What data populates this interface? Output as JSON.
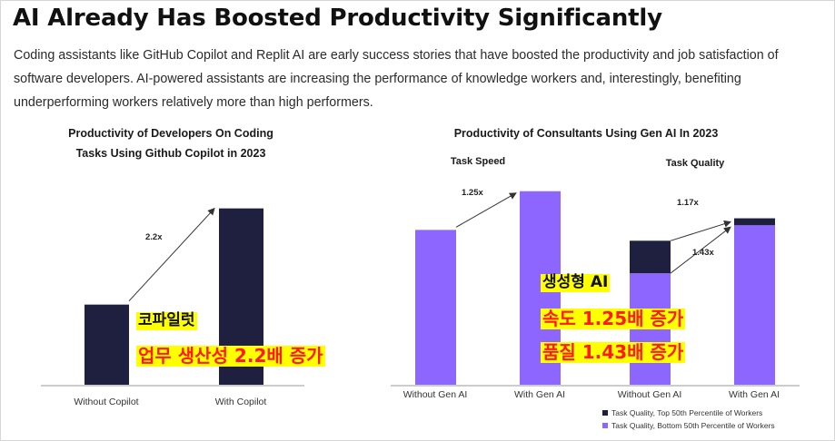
{
  "slide": {
    "title": "AI Already Has Boosted Productivity Significantly",
    "description": "Coding assistants like GitHub Copilot and Replit AI are early success stories that have boosted the productivity and job satisfaction of software developers. AI-powered assistants are increasing the performance of knowledge workers and, interestingly, benefiting underperforming workers relatively more than high performers."
  },
  "colors": {
    "navy": "#1f1f3f",
    "purple": "#8c66ff",
    "highlight": "#ffff00",
    "red_text": "#ff1a1a"
  },
  "chart_data": [
    {
      "type": "bar",
      "title": "Productivity of Developers On Coding Tasks Using Github Copilot in 2023",
      "title_lines": [
        "Productivity of Developers On Coding",
        "Tasks Using Github Copilot in 2023"
      ],
      "categories": [
        "Without Copilot",
        "With Copilot"
      ],
      "values": [
        1.0,
        2.2
      ],
      "ylim": [
        0,
        2.4
      ],
      "annotation": "2.2x"
    },
    {
      "type": "bar",
      "title": "Productivity of Consultants Using Gen AI In 2023",
      "panels": [
        {
          "title": "Task Speed",
          "categories": [
            "Without Gen AI",
            "With Gen AI"
          ],
          "values": [
            1.0,
            1.25
          ],
          "ylim": [
            0,
            1.43
          ],
          "annotations": [
            "1.25x"
          ]
        },
        {
          "title": "Task Quality",
          "categories": [
            "Without Gen AI",
            "With Gen AI"
          ],
          "stacked": true,
          "series": [
            {
              "name": "Task Quality, Bottom 50th Percentile of Workers",
              "values": [
                0.72,
                1.03
              ]
            },
            {
              "name": "Task Quality, Top 50th Percentile of Workers",
              "values": [
                0.21,
                0.045
              ]
            }
          ],
          "ylim": [
            0,
            1.43
          ],
          "annotations": [
            "1.17x",
            "1.43x"
          ]
        }
      ],
      "legend": [
        "Task Quality, Top 50th Percentile of Workers",
        "Task Quality, Bottom 50th Percentile of Workers"
      ]
    }
  ],
  "overlays": {
    "copilot_name": "코파일럿",
    "copilot_result": "업무 생산성 2.2배 증가",
    "genai_name": "생성형 AI",
    "genai_speed": "속도 1.25배 증가",
    "genai_quality": "품질 1.43배 증가"
  }
}
